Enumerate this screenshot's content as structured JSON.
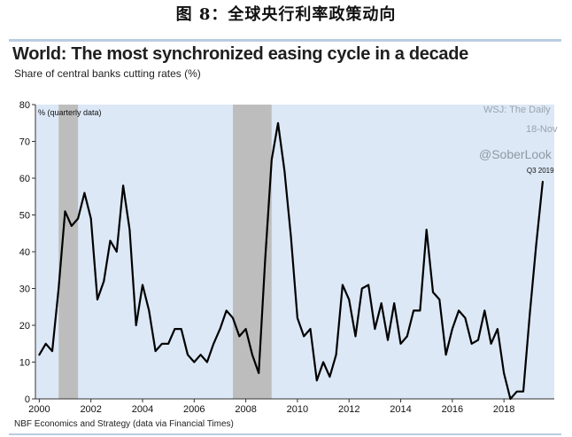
{
  "figure": {
    "caption": "图 8：全球央行利率政策动向",
    "source": "NBF Economics and Strategy (data via Financial Times)"
  },
  "colors": {
    "plot_bg": "#dce8f6",
    "shade": "#bdbdbd",
    "line": "#000000"
  },
  "chart_data": {
    "type": "line",
    "title": "World: The most synchronized easing cycle in a decade",
    "subtitle": "Share of central banks cutting rates (%)",
    "ylabel": "% (quarterly data)",
    "xlim": [
      1999.85,
      2019.95
    ],
    "ylim": [
      0,
      80
    ],
    "yticks": [
      0,
      10,
      20,
      30,
      40,
      50,
      60,
      70,
      80
    ],
    "xticks": [
      "2000",
      "2002",
      "2004",
      "2006",
      "2008",
      "2010",
      "2012",
      "2014",
      "2016",
      "2018"
    ],
    "recession_shading": [
      [
        2000.75,
        2001.5
      ],
      [
        2007.5,
        2009.0
      ]
    ],
    "watermarks": [
      "WSJ: The Daily",
      "18-Nov",
      "@SoberLook"
    ],
    "annotation": "Q3 2019",
    "series": [
      {
        "x": [
          2000.0,
          2000.25,
          2000.5,
          2000.75,
          2001.0,
          2001.25,
          2001.5,
          2001.75,
          2002.0,
          2002.25,
          2002.5,
          2002.75,
          2003.0,
          2003.25,
          2003.5,
          2003.75,
          2004.0,
          2004.25,
          2004.5,
          2004.75,
          2005.0,
          2005.25,
          2005.5,
          2005.75,
          2006.0,
          2006.25,
          2006.5,
          2006.75,
          2007.0,
          2007.25,
          2007.5,
          2007.75,
          2008.0,
          2008.25,
          2008.5,
          2008.75,
          2009.0,
          2009.25,
          2009.5,
          2009.75,
          2010.0,
          2010.25,
          2010.5,
          2010.75,
          2011.0,
          2011.25,
          2011.5,
          2011.75,
          2012.0,
          2012.25,
          2012.5,
          2012.75,
          2013.0,
          2013.25,
          2013.5,
          2013.75,
          2014.0,
          2014.25,
          2014.5,
          2014.75,
          2015.0,
          2015.25,
          2015.5,
          2015.75,
          2016.0,
          2016.25,
          2016.5,
          2016.75,
          2017.0,
          2017.25,
          2017.5,
          2017.75,
          2018.0,
          2018.25,
          2018.5,
          2018.75,
          2019.0,
          2019.25,
          2019.5
        ],
        "values": [
          12,
          15,
          13,
          30,
          51,
          47,
          49,
          56,
          49,
          27,
          32,
          43,
          40,
          58,
          46,
          20,
          31,
          24,
          13,
          15,
          15,
          19,
          19,
          12,
          10,
          12,
          10,
          15,
          19,
          24,
          22,
          17,
          19,
          12,
          7,
          38,
          65,
          75,
          62,
          44,
          22,
          17,
          19,
          5,
          10,
          6,
          12,
          31,
          27,
          17,
          30,
          31,
          19,
          26,
          16,
          26,
          15,
          17,
          24,
          24,
          46,
          29,
          27,
          12,
          19,
          24,
          22,
          15,
          16,
          24,
          15,
          19,
          7,
          0,
          2,
          2,
          23,
          42,
          59
        ]
      }
    ]
  }
}
